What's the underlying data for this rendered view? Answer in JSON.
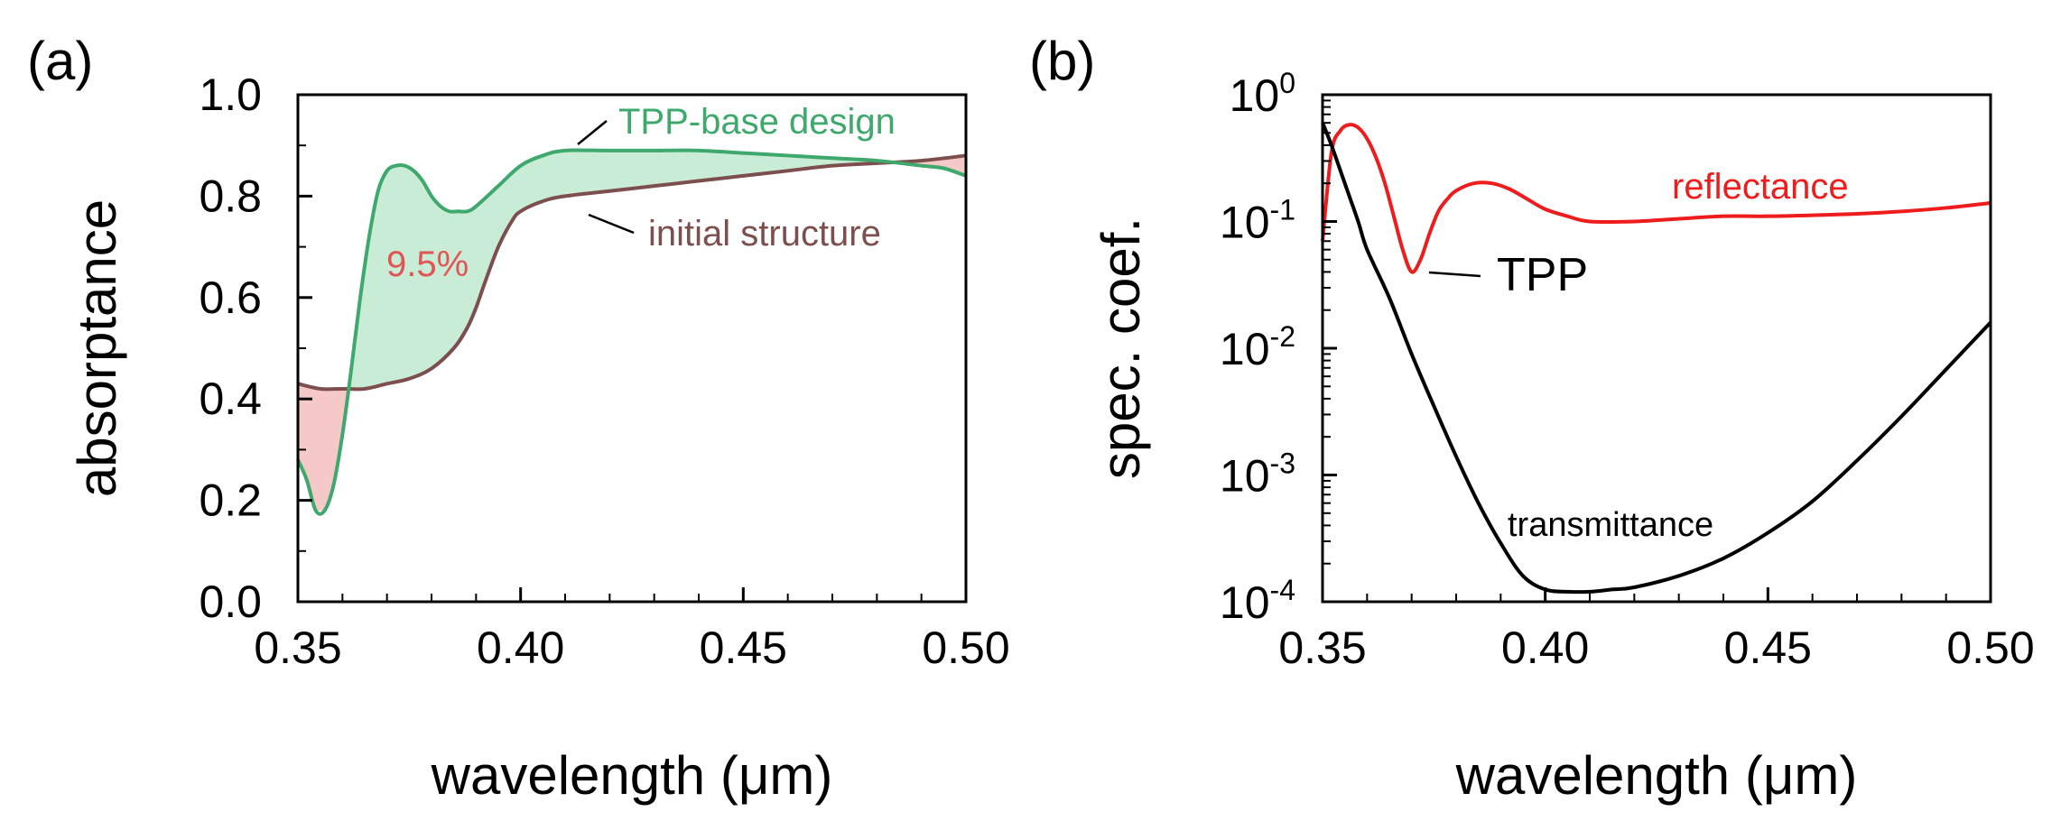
{
  "chart_data": [
    {
      "panel": "(a)",
      "type": "line",
      "title": "",
      "xlabel": "wavelength (μm)",
      "ylabel": "absorptance",
      "xlim": [
        0.35,
        0.5
      ],
      "ylim": [
        0.0,
        1.0
      ],
      "xticks": [
        "0.35",
        "0.40",
        "0.45",
        "0.50"
      ],
      "yticks": [
        "0.0",
        "0.2",
        "0.4",
        "0.6",
        "0.8",
        "1.0"
      ],
      "x_major_ticks": [
        0.35,
        0.4,
        0.45,
        0.5
      ],
      "y_major_ticks": [
        0.0,
        0.2,
        0.4,
        0.6,
        0.8,
        1.0
      ],
      "x_minor_step": 0.01,
      "y_minor_step": 0.1,
      "grid": false,
      "series": [
        {
          "name": "TPP-base design",
          "color": "#3ea86d",
          "x": [
            0.35,
            0.352,
            0.354,
            0.356,
            0.358,
            0.36,
            0.362,
            0.364,
            0.366,
            0.368,
            0.37,
            0.372,
            0.374,
            0.376,
            0.378,
            0.38,
            0.382,
            0.384,
            0.386,
            0.388,
            0.39,
            0.395,
            0.4,
            0.405,
            0.41,
            0.42,
            0.43,
            0.44,
            0.45,
            0.46,
            0.47,
            0.48,
            0.49,
            0.495,
            0.5
          ],
          "values": [
            0.28,
            0.24,
            0.18,
            0.18,
            0.23,
            0.33,
            0.46,
            0.6,
            0.72,
            0.81,
            0.85,
            0.86,
            0.86,
            0.85,
            0.83,
            0.8,
            0.78,
            0.77,
            0.77,
            0.77,
            0.78,
            0.82,
            0.86,
            0.88,
            0.89,
            0.89,
            0.89,
            0.89,
            0.885,
            0.88,
            0.875,
            0.87,
            0.86,
            0.855,
            0.84
          ]
        },
        {
          "name": "initial structure",
          "color": "#7d4e4e",
          "x": [
            0.35,
            0.355,
            0.36,
            0.365,
            0.37,
            0.375,
            0.38,
            0.385,
            0.388,
            0.39,
            0.392,
            0.395,
            0.398,
            0.4,
            0.405,
            0.41,
            0.42,
            0.43,
            0.44,
            0.45,
            0.46,
            0.47,
            0.48,
            0.49,
            0.5
          ],
          "values": [
            0.43,
            0.42,
            0.42,
            0.42,
            0.43,
            0.44,
            0.46,
            0.5,
            0.54,
            0.58,
            0.63,
            0.7,
            0.75,
            0.77,
            0.79,
            0.8,
            0.81,
            0.82,
            0.83,
            0.84,
            0.85,
            0.86,
            0.865,
            0.87,
            0.88
          ]
        }
      ],
      "fill_between": [
        {
          "where": "TPP-base design above initial structure",
          "color": "#c9ecd6"
        },
        {
          "where": "initial structure above TPP-base design",
          "color": "#f6c9c9"
        }
      ],
      "annotations": [
        {
          "text": "TPP-base design",
          "color": "#3ea86d",
          "x": 0.412,
          "y": 0.88
        },
        {
          "text": "initial structure",
          "color": "#7d4e4e",
          "x": 0.408,
          "y": 0.79
        },
        {
          "text": "9.5%",
          "color": "#e05555",
          "x": 0.37,
          "y": 0.67
        }
      ]
    },
    {
      "panel": "(b)",
      "type": "line",
      "title": "",
      "xlabel": "wavelength (μm)",
      "ylabel": "spec. coef.",
      "yscale": "log",
      "xlim": [
        0.35,
        0.5
      ],
      "ylim": [
        0.0001,
        1.0
      ],
      "xticks": [
        "0.35",
        "0.40",
        "0.45",
        "0.50"
      ],
      "x_major_ticks": [
        0.35,
        0.4,
        0.45,
        0.5
      ],
      "x_minor_step": 0.01,
      "ytick_base": "10",
      "ytick_exponents": [
        "0",
        "-1",
        "-2",
        "-3",
        "-4"
      ],
      "y_major_ticks": [
        1,
        0.1,
        0.01,
        0.001,
        0.0001
      ],
      "grid": false,
      "series": [
        {
          "name": "reflectance",
          "color": "#ee1c1c",
          "x": [
            0.35,
            0.352,
            0.354,
            0.356,
            0.358,
            0.36,
            0.362,
            0.364,
            0.366,
            0.368,
            0.37,
            0.372,
            0.374,
            0.376,
            0.378,
            0.38,
            0.384,
            0.388,
            0.392,
            0.396,
            0.4,
            0.405,
            0.41,
            0.42,
            0.43,
            0.44,
            0.45,
            0.46,
            0.47,
            0.48,
            0.49,
            0.5
          ],
          "values": [
            0.07,
            0.35,
            0.52,
            0.58,
            0.55,
            0.45,
            0.32,
            0.2,
            0.11,
            0.06,
            0.04,
            0.05,
            0.08,
            0.12,
            0.15,
            0.175,
            0.2,
            0.2,
            0.18,
            0.15,
            0.125,
            0.11,
            0.1,
            0.1,
            0.105,
            0.11,
            0.11,
            0.112,
            0.115,
            0.12,
            0.128,
            0.14
          ]
        },
        {
          "name": "transmittance",
          "color": "#000000",
          "x": [
            0.35,
            0.352,
            0.355,
            0.358,
            0.36,
            0.365,
            0.37,
            0.375,
            0.38,
            0.385,
            0.39,
            0.395,
            0.4,
            0.405,
            0.41,
            0.415,
            0.42,
            0.43,
            0.44,
            0.45,
            0.46,
            0.47,
            0.48,
            0.49,
            0.5
          ],
          "values": [
            0.6,
            0.4,
            0.2,
            0.1,
            0.06,
            0.025,
            0.009,
            0.0035,
            0.0014,
            0.0006,
            0.00029,
            0.00016,
            0.000125,
            0.00012,
            0.00012,
            0.000125,
            0.00013,
            0.00016,
            0.00022,
            0.00035,
            0.00062,
            0.0013,
            0.0029,
            0.0068,
            0.016
          ]
        }
      ],
      "annotations": [
        {
          "text": "reflectance",
          "color": "#ee1c1c",
          "x": 0.431,
          "y": 0.125
        },
        {
          "text": "transmittance",
          "color": "#000000",
          "x": 0.391,
          "y": 0.00075
        },
        {
          "text": "TPP",
          "color": "#000000",
          "x": 0.39,
          "y": 0.038
        }
      ]
    }
  ]
}
